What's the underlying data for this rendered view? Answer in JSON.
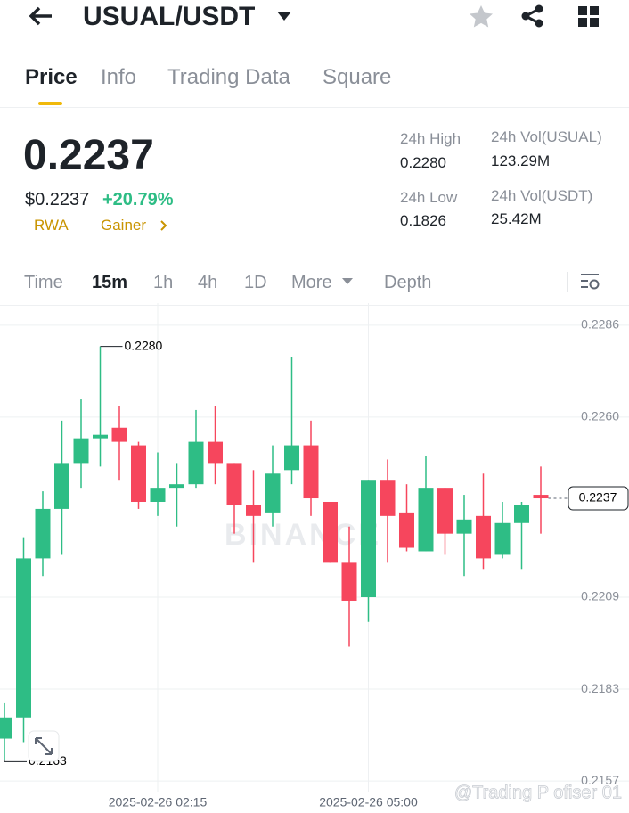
{
  "header": {
    "title": "USUAL/USDT"
  },
  "tabs": [
    "Price",
    "Info",
    "Trading Data",
    "Square"
  ],
  "price": {
    "last": "0.2237",
    "usd": "$0.2237",
    "change": "+20.79%",
    "tags": [
      "RWA",
      "Gainer"
    ]
  },
  "stats": [
    {
      "label": "24h High",
      "value": "0.2280"
    },
    {
      "label": "24h Vol(USUAL)",
      "value": "123.29M"
    },
    {
      "label": "24h Low",
      "value": "0.1826"
    },
    {
      "label": "24h Vol(USDT)",
      "value": "25.42M"
    }
  ],
  "intervals": [
    "Time",
    "15m",
    "1h",
    "4h",
    "1D",
    "More",
    "Depth"
  ],
  "chart_data": {
    "type": "candlestick",
    "categories": [
      null,
      null,
      null,
      null,
      null,
      null,
      null,
      null,
      "2025-02-26 02:15",
      null,
      null,
      null,
      null,
      null,
      null,
      null,
      null,
      null,
      null,
      "2025-02-26 05:00",
      null,
      null,
      null,
      null,
      null,
      null,
      null,
      null,
      null
    ],
    "open": [
      0.2169,
      0.2175,
      0.222,
      0.2234,
      0.2247,
      0.2254,
      0.2257,
      0.2252,
      0.2236,
      0.224,
      0.2241,
      0.2253,
      0.2247,
      0.2235,
      0.2233,
      0.2245,
      0.2252,
      0.2236,
      0.2219,
      0.2209,
      0.2242,
      0.2233,
      0.2222,
      0.224,
      0.2227,
      0.2232,
      0.2221,
      0.223,
      0.2238
    ],
    "high": [
      0.2179,
      0.2226,
      0.2239,
      0.2259,
      0.2265,
      0.228,
      0.2263,
      0.2253,
      0.225,
      0.2247,
      0.2262,
      0.2263,
      0.2247,
      0.2245,
      0.2252,
      0.2277,
      0.2259,
      0.2236,
      0.2229,
      0.2242,
      0.2248,
      0.2241,
      0.2249,
      0.224,
      0.2238,
      0.2244,
      0.2236,
      0.2236,
      0.2246
    ],
    "low": [
      0.2163,
      0.2168,
      0.2215,
      0.2221,
      0.224,
      0.2246,
      0.2242,
      0.2234,
      0.2232,
      0.2229,
      0.224,
      0.2241,
      0.2227,
      0.2219,
      0.2229,
      0.2241,
      0.2232,
      0.2219,
      0.2195,
      0.2202,
      0.2219,
      0.2222,
      0.2222,
      0.2221,
      0.2215,
      0.2217,
      0.222,
      0.2217,
      0.2227
    ],
    "close": [
      0.2175,
      0.222,
      0.2234,
      0.2247,
      0.2254,
      0.2255,
      0.2253,
      0.2236,
      0.224,
      0.2241,
      0.2253,
      0.2247,
      0.2235,
      0.2232,
      0.2244,
      0.2252,
      0.2237,
      0.2219,
      0.2208,
      0.2242,
      0.2232,
      0.2223,
      0.224,
      0.2227,
      0.2231,
      0.222,
      0.223,
      0.2235,
      0.2237
    ],
    "up_color": "#2ebd85",
    "down_color": "#f6465d",
    "ylim": [
      0.2154,
      0.2291
    ],
    "yticks": [
      0.2286,
      {
        "value": 0.226,
        "label": "0.2260"
      },
      0.2209,
      0.2183,
      0.2157
    ],
    "grid": true,
    "annotations": {
      "high": "0.2280",
      "low": "0.2163",
      "last": "0.2237"
    },
    "watermark": "BINANCE",
    "credit": "@Trading P ofiser 01"
  }
}
